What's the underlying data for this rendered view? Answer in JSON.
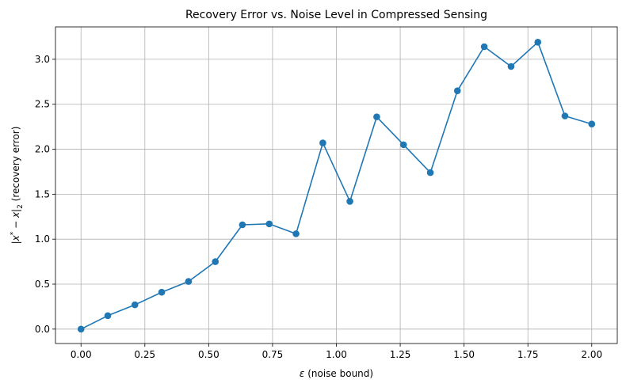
{
  "chart_data": {
    "type": "line",
    "title": "Recovery Error vs. Noise Level in Compressed Sensing",
    "xlabel": "ε (noise bound)",
    "ylabel": "|x* − x|₂ (recovery error)",
    "xlim": [
      -0.1,
      2.1
    ],
    "ylim": [
      -0.16,
      3.36
    ],
    "x_ticks": [
      0.0,
      0.25,
      0.5,
      0.75,
      1.0,
      1.25,
      1.5,
      1.75,
      2.0
    ],
    "x_tick_labels": [
      "0.00",
      "0.25",
      "0.50",
      "0.75",
      "1.00",
      "1.25",
      "1.50",
      "1.75",
      "2.00"
    ],
    "y_ticks": [
      0.0,
      0.5,
      1.0,
      1.5,
      2.0,
      2.5,
      3.0
    ],
    "y_tick_labels": [
      "0.0",
      "0.5",
      "1.0",
      "1.5",
      "2.0",
      "2.5",
      "3.0"
    ],
    "grid": true,
    "color": "#1f77b4",
    "marker": "circle",
    "series": [
      {
        "x": [
          0.0,
          0.105,
          0.211,
          0.316,
          0.421,
          0.526,
          0.632,
          0.737,
          0.842,
          0.947,
          1.053,
          1.158,
          1.263,
          1.368,
          1.474,
          1.579,
          1.684,
          1.789,
          1.895,
          2.0
        ],
        "y": [
          0.0,
          0.15,
          0.27,
          0.41,
          0.53,
          0.75,
          1.16,
          1.17,
          1.06,
          2.07,
          1.42,
          2.36,
          2.05,
          1.74,
          2.65,
          3.14,
          2.92,
          3.19,
          2.37,
          2.28
        ]
      }
    ]
  }
}
